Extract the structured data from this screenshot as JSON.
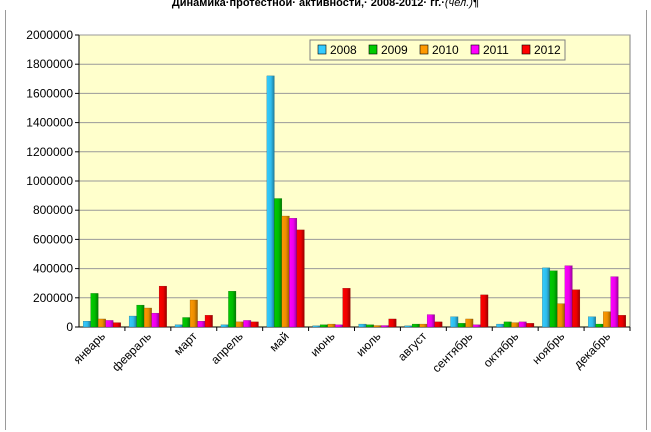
{
  "page": {
    "title": "Динамика·протестной· активности,· 2008-2012· гг.·",
    "title_unit": "(чел.)",
    "title_mark": "¶"
  },
  "chart_data": {
    "type": "bar",
    "categories": [
      "январь",
      "февраль",
      "март",
      "апрель",
      "май",
      "июнь",
      "июль",
      "август",
      "сентябрь",
      "октябрь",
      "ноябрь",
      "декабрь"
    ],
    "series": [
      {
        "name": "2008",
        "color": "#33ccff",
        "values": [
          40000,
          75000,
          15000,
          15000,
          1720000,
          8000,
          20000,
          8000,
          70000,
          20000,
          405000,
          70000
        ]
      },
      {
        "name": "2009",
        "color": "#00cc00",
        "values": [
          230000,
          150000,
          65000,
          245000,
          880000,
          15000,
          15000,
          20000,
          25000,
          35000,
          385000,
          20000
        ]
      },
      {
        "name": "2010",
        "color": "#ff9900",
        "values": [
          55000,
          130000,
          185000,
          35000,
          760000,
          20000,
          10000,
          20000,
          55000,
          30000,
          160000,
          105000
        ]
      },
      {
        "name": "2011",
        "color": "#ff00ff",
        "values": [
          45000,
          95000,
          40000,
          45000,
          745000,
          15000,
          10000,
          85000,
          15000,
          35000,
          420000,
          345000
        ]
      },
      {
        "name": "2012",
        "color": "#ff0000",
        "values": [
          30000,
          280000,
          80000,
          35000,
          665000,
          265000,
          55000,
          35000,
          220000,
          25000,
          255000,
          80000
        ]
      }
    ],
    "ylim": [
      0,
      2000000
    ],
    "yticks": [
      "0",
      "200000",
      "400000",
      "600000",
      "800000",
      "1000000",
      "1200000",
      "1400000",
      "1600000",
      "1800000",
      "2000000"
    ],
    "grid": true,
    "legend": "top-right",
    "plot_background": "#ffffcc"
  }
}
